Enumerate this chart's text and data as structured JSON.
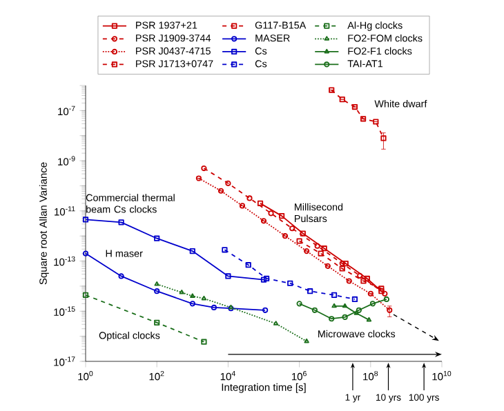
{
  "chart_data": {
    "type": "line",
    "xlabel": "Integration time [s]",
    "ylabel": "Square root Allan Variance",
    "log": "xy",
    "xlim": [
      1,
      10000000000.0
    ],
    "ylim": [
      1e-17,
      1e-06
    ],
    "xticks": [
      {
        "value": 1,
        "label": "10$^{0}$"
      },
      {
        "value": 100,
        "label": "10$^{2}$"
      },
      {
        "value": 10000.0,
        "label": "10$^{4}$"
      },
      {
        "value": 1000000.0,
        "label": "10$^{6}$"
      },
      {
        "value": 100000000.0,
        "label": "10$^{8}$"
      },
      {
        "value": 10000000000.0,
        "label": "10$^{10}$"
      }
    ],
    "yticks": [
      {
        "value": 1e-17,
        "label": "10$^{-17}$"
      },
      {
        "value": 1e-16,
        "label": null
      },
      {
        "value": 1e-15,
        "label": "10$^{-15}$"
      },
      {
        "value": 1e-14,
        "label": null
      },
      {
        "value": 1e-13,
        "label": "10$^{-13}$"
      },
      {
        "value": 1e-12,
        "label": null
      },
      {
        "value": 1e-11,
        "label": "10$^{-11}$"
      },
      {
        "value": 1e-10,
        "label": null
      },
      {
        "value": 1e-09,
        "label": "10$^{-9}$"
      },
      {
        "value": 1e-08,
        "label": null
      },
      {
        "value": 1e-07,
        "label": "10$^{-7}$"
      },
      {
        "value": 1e-06,
        "label": null
      }
    ],
    "legend": "top",
    "grid": false,
    "series": [
      {
        "name": "PSR 1937+21",
        "color": "#cc0000",
        "marker": "square",
        "line_style": "solid",
        "x": [
          80000.0,
          320000.0,
          1260000.0,
          5000000.0,
          20000000.0,
          80000000.0,
          200000000.0
        ],
        "values": [
          2e-11,
          6.3e-12,
          1.26e-12,
          3.2e-13,
          8e-14,
          2e-14,
          6.3e-15
        ]
      },
      {
        "name": "PSR J1909-3744",
        "color": "#cc0000",
        "marker": "circle",
        "line_style": "dashed",
        "x": [
          2100.0,
          10000.0,
          40000.0,
          160000.0,
          630000.0,
          3200000.0,
          16000000.0,
          50000000.0,
          250000000.0
        ],
        "values": [
          5e-10,
          1.26e-10,
          3.2e-11,
          8e-12,
          2e-12,
          4e-13,
          8e-14,
          2.6e-14,
          5e-15
        ]
      },
      {
        "name": "PSR J0437-4715",
        "color": "#cc0000",
        "marker": "circle",
        "line_style": "dotted",
        "x": [
          1500.0,
          6300.0,
          25000.0,
          100000.0,
          400000.0,
          1600000.0,
          6300000.0,
          25000000.0,
          100000000.0,
          340000000.0
        ],
        "values": [
          2e-10,
          6.3e-11,
          1.6e-11,
          4e-12,
          1e-12,
          2.5e-13,
          6.3e-14,
          1.6e-14,
          5e-15,
          1.1e-15
        ],
        "errors": [
          null,
          null,
          null,
          null,
          null,
          null,
          null,
          null,
          null,
          5e-16
        ]
      },
      {
        "name": "PSR J1713+0747",
        "color": "#cc0000",
        "marker": "square",
        "line_style": "dashed",
        "x": [
          1000000.0,
          4000000.0,
          16000000.0,
          63000000.0,
          200000000.0
        ],
        "values": [
          6.3e-13,
          2e-13,
          5e-14,
          1.6e-14,
          8e-15
        ]
      },
      {
        "name": "G117-B15A",
        "color": "#cc0000",
        "marker": "square",
        "line_style": "dashed",
        "x": [
          8000000.0,
          16000000.0,
          36000000.0,
          62000000.0,
          140000000.0,
          230000000.0
        ],
        "values": [
          6.6e-07,
          2.8e-07,
          1.4e-07,
          4.7e-08,
          3.6e-08,
          7.9e-09
        ],
        "errors": [
          null,
          null,
          null,
          null,
          null,
          5e-09
        ]
      },
      {
        "name": "MASER",
        "color": "#0000cc",
        "marker": "circle",
        "line_style": "solid",
        "x": [
          1,
          10,
          100,
          1000,
          4000.0,
          12000.0,
          110000.0
        ],
        "values": [
          2e-13,
          2.5e-14,
          6.3e-15,
          2e-15,
          1.4e-15,
          1.3e-15,
          1.1e-15
        ]
      },
      {
        "name": "Cs",
        "color": "#0000cc",
        "marker": "square",
        "line_style": "solid",
        "x": [
          1,
          10,
          100,
          1000,
          10000.0,
          100000.0
        ],
        "values": [
          4.5e-12,
          3.5e-12,
          8e-13,
          2.5e-13,
          2.5e-14,
          1.8e-14
        ]
      },
      {
        "name": "Cs",
        "color": "#0000cc",
        "marker": "square",
        "line_style": "dashed",
        "x": [
          8000.0,
          37000.0,
          120000.0,
          550000.0,
          2000000.0,
          9500000.0,
          36000000.0
        ],
        "values": [
          2.8e-13,
          7e-14,
          2e-14,
          1.3e-14,
          6.3e-15,
          4.4e-15,
          3e-15
        ]
      },
      {
        "name": "Al-Hg clocks",
        "color": "#1a6e1a",
        "marker": "square",
        "line_style": "dashed",
        "x": [
          1,
          100,
          2100
        ],
        "values": [
          4.4e-15,
          3.5e-16,
          6e-17
        ]
      },
      {
        "name": "FO2-FOM clocks",
        "color": "#1a6e1a",
        "marker": "triangle",
        "line_style": "dotted",
        "x": [
          100,
          500,
          1000,
          2100,
          12000.0,
          220000.0,
          1600000.0
        ],
        "values": [
          1.2e-14,
          5.6e-15,
          4e-15,
          3.2e-15,
          1.4e-15,
          3.2e-16,
          6.3e-17
        ]
      },
      {
        "name": "FO2-F1 clocks",
        "color": "#1a6e1a",
        "marker": "triangle",
        "line_style": "solid",
        "x": [
          9500000.0,
          19000000.0,
          40000000.0,
          90000000.0
        ],
        "values": [
          1.6e-15,
          1.6e-15,
          8.3e-16,
          4.5e-16
        ]
      },
      {
        "name": "TAI-AT1",
        "color": "#1a6e1a",
        "marker": "circle",
        "line_style": "solid",
        "x": [
          1000000.0,
          2700000.0,
          8000000.0,
          19000000.0,
          47000000.0,
          115000000.0,
          280000000.0
        ],
        "values": [
          2e-15,
          1.1e-15,
          5e-16,
          5.8e-16,
          1.1e-15,
          2e-15,
          3e-15
        ]
      }
    ],
    "annotations": [
      "Commercial thermal beam Cs clocks",
      "H maser",
      "Optical clocks",
      "Microwave clocks",
      "White dwarf",
      "Millisecond Pulsars",
      "1 yr",
      "10 yrs",
      "100 yrs"
    ]
  }
}
